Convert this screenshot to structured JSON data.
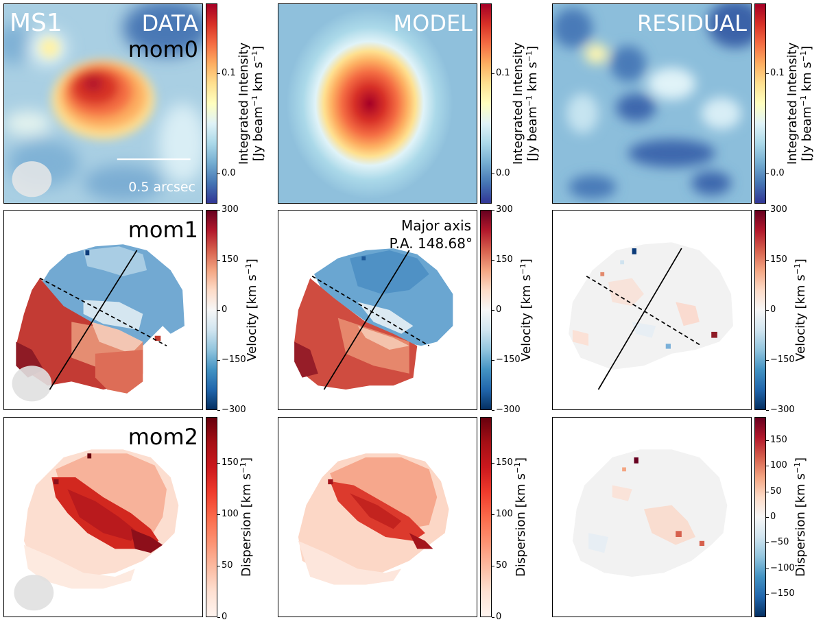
{
  "chart_data": {
    "type": "heatmap",
    "title": "MS1",
    "columns": [
      "DATA",
      "MODEL",
      "RESIDUAL"
    ],
    "rows": [
      "mom0",
      "mom1",
      "mom2"
    ],
    "annotations": {
      "scalebar": "0.5 arcsec",
      "major_axis": "Major axis",
      "position_angle": "P.A. 148.68°"
    },
    "colormap": [
      "#313695",
      "#4575b4",
      "#74add1",
      "#abd9e9",
      "#e0f3f8",
      "#ffffbf",
      "#fee090",
      "#fdae61",
      "#f46d43",
      "#d73027",
      "#a50026"
    ],
    "colormap_reds": [
      "#fff5f0",
      "#fee0d2",
      "#fcbba1",
      "#fc9272",
      "#fb6a4a",
      "#ef3b2c",
      "#cb181d",
      "#a50f15",
      "#67000d"
    ],
    "colormap_rdbu": [
      "#053061",
      "#2166ac",
      "#4393c3",
      "#92c5de",
      "#d1e5f0",
      "#f7f7f7",
      "#fddbc7",
      "#f4a582",
      "#d6604d",
      "#b2182b",
      "#67001f"
    ],
    "colorbars": {
      "mom0": {
        "label_line1": "Integrated Intensity",
        "label_line2_pre": "[Jy beam",
        "label_line2_sup": "−1",
        "label_line2_post": " km s",
        "label_line2_sup2": "−1",
        "label_line2_end": "]",
        "range": [
          -0.03,
          0.17
        ],
        "ticks": [
          0.0,
          0.1
        ],
        "tick_labels": [
          "0.0",
          "0.1"
        ]
      },
      "mom1": {
        "label_pre": "Velocity [km s",
        "label_sup": "−1",
        "label_end": "]",
        "range": [
          -300,
          300
        ],
        "ticks": [
          300,
          150,
          0,
          -150,
          -300
        ],
        "tick_labels": [
          "300",
          "150",
          "0",
          "−150",
          "−300"
        ]
      },
      "mom2": {
        "label_pre": "Dispersion [km s",
        "label_sup": "−1",
        "label_end": "]",
        "range": [
          0,
          195
        ],
        "ticks": [
          150,
          100,
          50,
          0
        ],
        "tick_labels": [
          "150",
          "100",
          "50",
          "0"
        ]
      },
      "mom2_residual": {
        "label_pre": "Dispersion [km s",
        "label_sup": "−1",
        "label_end": "]",
        "range": [
          -195,
          195
        ],
        "ticks": [
          150,
          100,
          50,
          0,
          -50,
          -100,
          -150
        ],
        "tick_labels": [
          "150",
          "100",
          "50",
          "0",
          "−50",
          "−100",
          "−150"
        ]
      }
    }
  }
}
